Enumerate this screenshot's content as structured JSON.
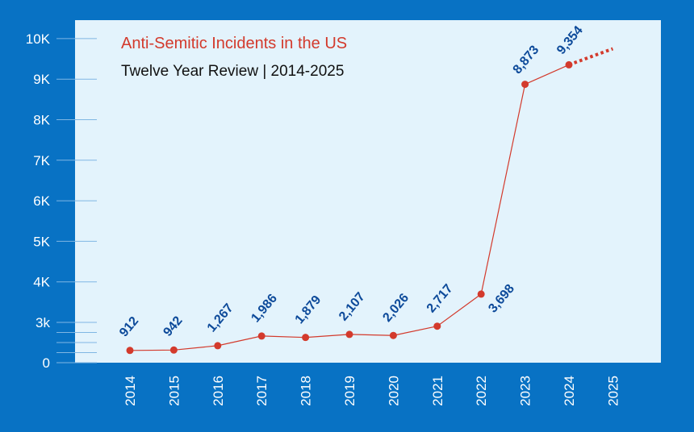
{
  "chart_data": {
    "type": "line",
    "title": "Anti-Semitic Incidents in the US",
    "subtitle": "Twelve Year Review | 2014-2025",
    "xlabel": "",
    "ylabel": "",
    "x": [
      "2014",
      "2015",
      "2016",
      "2017",
      "2018",
      "2019",
      "2020",
      "2021",
      "2022",
      "2023",
      "2024",
      "2025"
    ],
    "values": [
      912,
      942,
      1267,
      1986,
      1879,
      2107,
      2026,
      2717,
      3698,
      8873,
      9354,
      null
    ],
    "data_labels": [
      "912",
      "942",
      "1,267",
      "1,986",
      "1,879",
      "2,107",
      "2,026",
      "2,717",
      "3,698",
      "8,873",
      "9,354",
      ""
    ],
    "projection": {
      "from": "2024",
      "to": "2025",
      "to_value": 9750,
      "style": "dotted"
    },
    "y_ticks": [
      {
        "value": 0,
        "label": "0"
      },
      {
        "value": 3000,
        "label": "3k"
      },
      {
        "value": 4000,
        "label": "4K"
      },
      {
        "value": 5000,
        "label": "5K"
      },
      {
        "value": 6000,
        "label": "6K"
      },
      {
        "value": 7000,
        "label": "7K"
      },
      {
        "value": 8000,
        "label": "8K"
      },
      {
        "value": 9000,
        "label": "9K"
      },
      {
        "value": 10000,
        "label": "10K"
      }
    ],
    "y_minor_ticks": [
      750,
      1500,
      2250
    ],
    "grid": false,
    "colors": {
      "background": "#0872c4",
      "plot_area": "#e3f3fc",
      "line": "#d33a2c",
      "labels": "#0d4a9a",
      "axis_text": "#ffffff"
    }
  }
}
